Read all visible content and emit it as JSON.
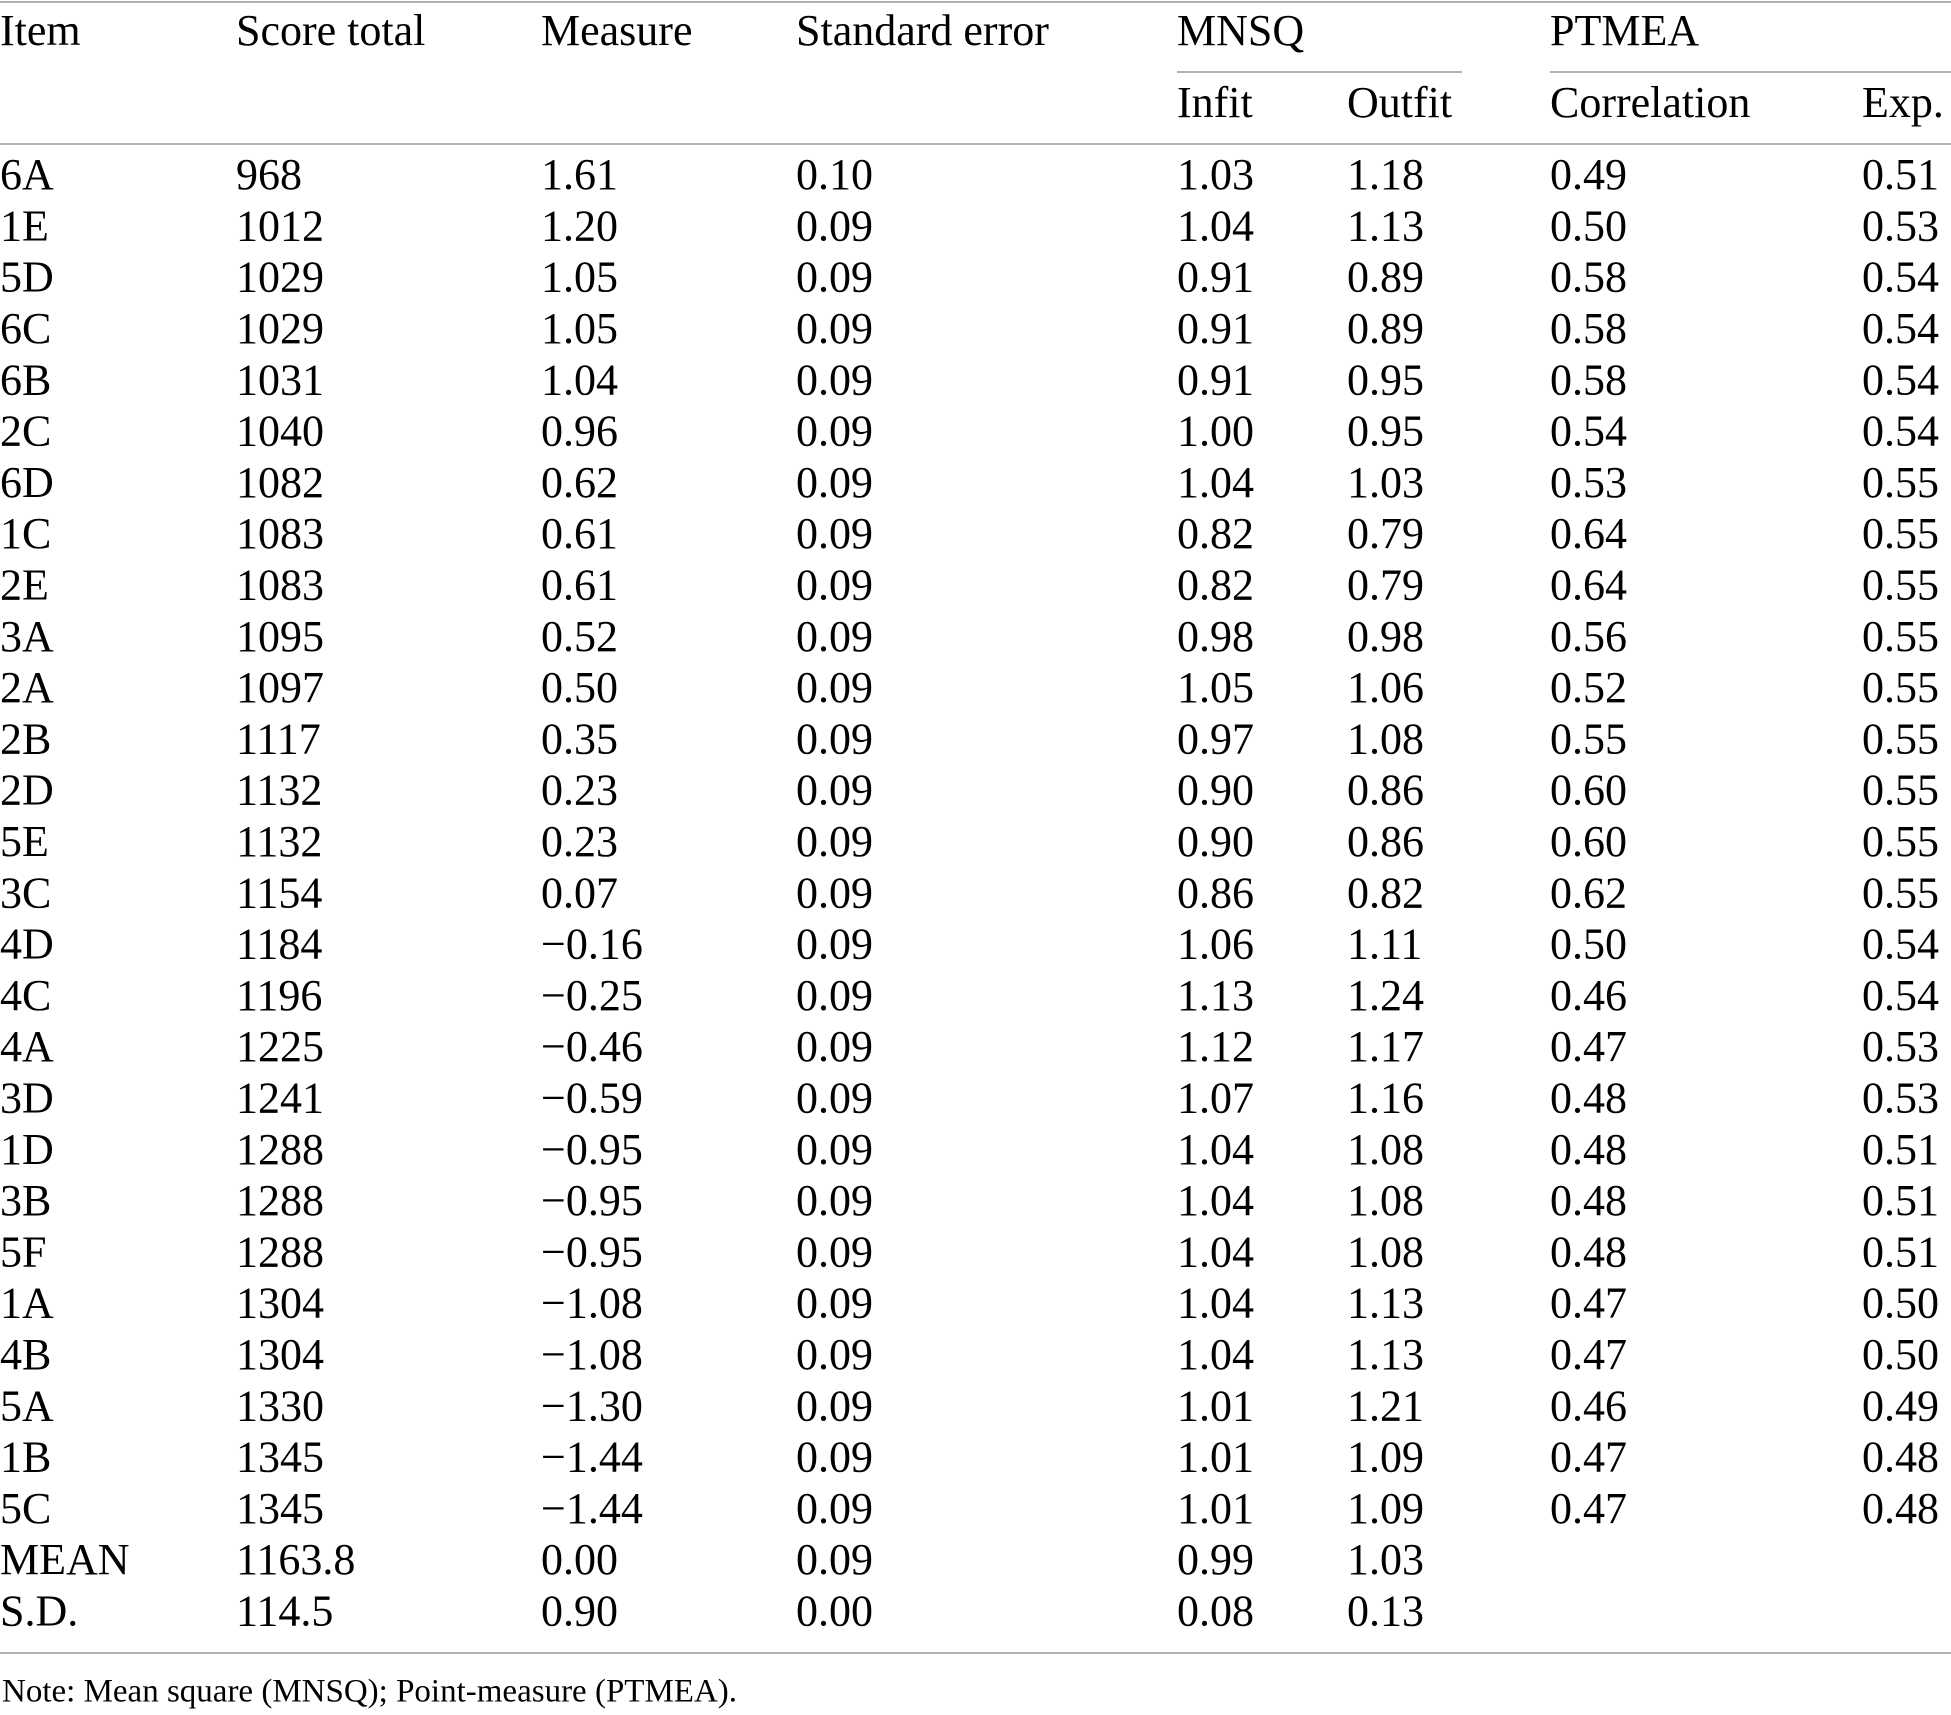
{
  "table": {
    "header": {
      "columns": [
        "Item",
        "Score total",
        "Measure",
        "Standard error"
      ],
      "groups": [
        {
          "title": "MNSQ",
          "sub": [
            "Infit",
            "Outfit"
          ]
        },
        {
          "title": "PTMEA",
          "sub": [
            "Correlation",
            "Exp."
          ]
        }
      ]
    },
    "rows": [
      [
        "6A",
        "968",
        "1.61",
        "0.10",
        "1.03",
        "1.18",
        "0.49",
        "0.51"
      ],
      [
        "1E",
        "1012",
        "1.20",
        "0.09",
        "1.04",
        "1.13",
        "0.50",
        "0.53"
      ],
      [
        "5D",
        "1029",
        "1.05",
        "0.09",
        "0.91",
        "0.89",
        "0.58",
        "0.54"
      ],
      [
        "6C",
        "1029",
        "1.05",
        "0.09",
        "0.91",
        "0.89",
        "0.58",
        "0.54"
      ],
      [
        "6B",
        "1031",
        "1.04",
        "0.09",
        "0.91",
        "0.95",
        "0.58",
        "0.54"
      ],
      [
        "2C",
        "1040",
        "0.96",
        "0.09",
        "1.00",
        "0.95",
        "0.54",
        "0.54"
      ],
      [
        "6D",
        "1082",
        "0.62",
        "0.09",
        "1.04",
        "1.03",
        "0.53",
        "0.55"
      ],
      [
        "1C",
        "1083",
        "0.61",
        "0.09",
        "0.82",
        "0.79",
        "0.64",
        "0.55"
      ],
      [
        "2E",
        "1083",
        "0.61",
        "0.09",
        "0.82",
        "0.79",
        "0.64",
        "0.55"
      ],
      [
        "3A",
        "1095",
        "0.52",
        "0.09",
        "0.98",
        "0.98",
        "0.56",
        "0.55"
      ],
      [
        "2A",
        "1097",
        "0.50",
        "0.09",
        "1.05",
        "1.06",
        "0.52",
        "0.55"
      ],
      [
        "2B",
        "1117",
        "0.35",
        "0.09",
        "0.97",
        "1.08",
        "0.55",
        "0.55"
      ],
      [
        "2D",
        "1132",
        "0.23",
        "0.09",
        "0.90",
        "0.86",
        "0.60",
        "0.55"
      ],
      [
        "5E",
        "1132",
        "0.23",
        "0.09",
        "0.90",
        "0.86",
        "0.60",
        "0.55"
      ],
      [
        "3C",
        "1154",
        "0.07",
        "0.09",
        "0.86",
        "0.82",
        "0.62",
        "0.55"
      ],
      [
        "4D",
        "1184",
        "−0.16",
        "0.09",
        "1.06",
        "1.11",
        "0.50",
        "0.54"
      ],
      [
        "4C",
        "1196",
        "−0.25",
        "0.09",
        "1.13",
        "1.24",
        "0.46",
        "0.54"
      ],
      [
        "4A",
        "1225",
        "−0.46",
        "0.09",
        "1.12",
        "1.17",
        "0.47",
        "0.53"
      ],
      [
        "3D",
        "1241",
        "−0.59",
        "0.09",
        "1.07",
        "1.16",
        "0.48",
        "0.53"
      ],
      [
        "1D",
        "1288",
        "−0.95",
        "0.09",
        "1.04",
        "1.08",
        "0.48",
        "0.51"
      ],
      [
        "3B",
        "1288",
        "−0.95",
        "0.09",
        "1.04",
        "1.08",
        "0.48",
        "0.51"
      ],
      [
        "5F",
        "1288",
        "−0.95",
        "0.09",
        "1.04",
        "1.08",
        "0.48",
        "0.51"
      ],
      [
        "1A",
        "1304",
        "−1.08",
        "0.09",
        "1.04",
        "1.13",
        "0.47",
        "0.50"
      ],
      [
        "4B",
        "1304",
        "−1.08",
        "0.09",
        "1.04",
        "1.13",
        "0.47",
        "0.50"
      ],
      [
        "5A",
        "1330",
        "−1.30",
        "0.09",
        "1.01",
        "1.21",
        "0.46",
        "0.49"
      ],
      [
        "1B",
        "1345",
        "−1.44",
        "0.09",
        "1.01",
        "1.09",
        "0.47",
        "0.48"
      ],
      [
        "5C",
        "1345",
        "−1.44",
        "0.09",
        "1.01",
        "1.09",
        "0.47",
        "0.48"
      ],
      [
        "MEAN",
        "1163.8",
        "0.00",
        "0.09",
        "0.99",
        "1.03"
      ],
      [
        "S.D.",
        "114.5",
        "0.90",
        "0.00",
        "0.08",
        "0.13"
      ]
    ],
    "note": "Note: Mean square (MNSQ); Point-measure (PTMEA)."
  }
}
